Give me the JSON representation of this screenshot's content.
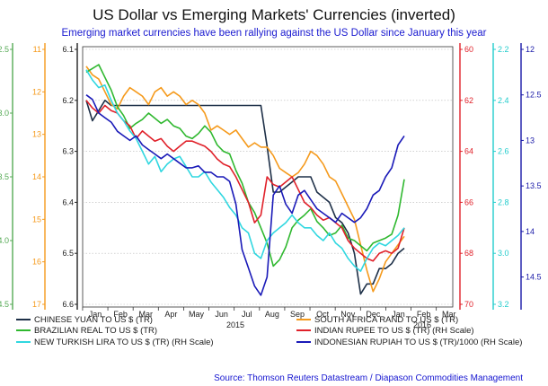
{
  "chart_data": {
    "type": "line",
    "title": "US Dollar vs Emerging Markets' Currencies (inverted)",
    "subtitle": "Emerging market currencies have been rallying against the US Dollar since January this year",
    "source": "Source: Thomson Reuters Datastream / Diapason Commodities Management",
    "x_ticks": [
      "Jan",
      "Feb",
      "Mar",
      "Apr",
      "May",
      "Jun",
      "Jul",
      "Aug",
      "Sep",
      "Oct",
      "Nov",
      "Dec",
      "Jan",
      "Feb",
      "Mar"
    ],
    "year_labels": [
      "2015",
      "2016"
    ],
    "axes": [
      {
        "id": "ax1",
        "side": "left",
        "color": "#55aa55",
        "ticks": [
          "2.5",
          "3.0",
          "3.5",
          "4.0",
          "4.5"
        ],
        "min": 2.5,
        "max": 4.5,
        "inverted": true
      },
      {
        "id": "ax2",
        "side": "left",
        "color": "#f59a1c",
        "ticks": [
          "11",
          "12",
          "13",
          "14",
          "15",
          "16",
          "17"
        ],
        "min": 11,
        "max": 17,
        "inverted": true
      },
      {
        "id": "ax3",
        "side": "left",
        "color": "#222222",
        "ticks": [
          "6.1",
          "6.2",
          "6.3",
          "6.4",
          "6.5",
          "6.6"
        ],
        "min": 6.1,
        "max": 6.6,
        "inverted": true
      },
      {
        "id": "ax4",
        "side": "right",
        "color": "#e0212a",
        "ticks": [
          "60",
          "62",
          "64",
          "66",
          "68",
          "70"
        ],
        "min": 60,
        "max": 70,
        "inverted": true
      },
      {
        "id": "ax5",
        "side": "right",
        "color": "#22cccc",
        "ticks": [
          "2.2",
          "2.4",
          "2.6",
          "2.8",
          "3.0",
          "3.2"
        ],
        "min": 2.2,
        "max": 3.2,
        "inverted": true
      },
      {
        "id": "ax6",
        "side": "right",
        "color": "#1a1aa8",
        "ticks": [
          "12",
          "12.5",
          "13",
          "13.5",
          "14",
          "14.5"
        ],
        "min": 12,
        "max": 14.8,
        "inverted": true
      }
    ],
    "series": [
      {
        "name": "CHINESE YUAN TO US $ (TR)",
        "axis": "ax3",
        "color": "#1e3048",
        "values": [
          6.2,
          6.24,
          6.22,
          6.2,
          6.21,
          6.21,
          6.21,
          6.21,
          6.21,
          6.21,
          6.21,
          6.21,
          6.21,
          6.21,
          6.21,
          6.21,
          6.21,
          6.21,
          6.21,
          6.21,
          6.21,
          6.21,
          6.21,
          6.21,
          6.21,
          6.21,
          6.21,
          6.21,
          6.21,
          6.29,
          6.38,
          6.38,
          6.37,
          6.36,
          6.35,
          6.35,
          6.35,
          6.38,
          6.39,
          6.4,
          6.43,
          6.44,
          6.46,
          6.5,
          6.58,
          6.56,
          6.56,
          6.53,
          6.53,
          6.52,
          6.5,
          6.49
        ]
      },
      {
        "name": "SOUTH AFRICA RAND TO US $ (TR)",
        "axis": "ax2",
        "color": "#f59a1c",
        "values": [
          11.4,
          11.6,
          11.7,
          12.0,
          12.3,
          12.4,
          12.1,
          11.9,
          12.0,
          12.1,
          12.3,
          12.0,
          11.9,
          12.1,
          12.0,
          12.1,
          12.3,
          12.2,
          12.3,
          12.5,
          12.9,
          12.8,
          12.9,
          13.0,
          12.9,
          13.1,
          13.3,
          13.2,
          13.3,
          13.3,
          13.5,
          13.8,
          13.9,
          14.0,
          13.9,
          13.7,
          13.4,
          13.5,
          13.7,
          14.0,
          14.1,
          14.4,
          14.7,
          15.0,
          15.6,
          16.2,
          16.7,
          16.4,
          16.0,
          15.8,
          15.6,
          15.4
        ]
      },
      {
        "name": "BRAZILIAN REAL TO US $ (TR)",
        "axis": "ax1",
        "color": "#2fb82f",
        "values": [
          2.68,
          2.65,
          2.62,
          2.72,
          2.82,
          2.95,
          3.02,
          3.12,
          3.08,
          3.05,
          3.0,
          3.04,
          3.08,
          3.05,
          3.1,
          3.12,
          3.18,
          3.2,
          3.16,
          3.1,
          3.15,
          3.25,
          3.3,
          3.32,
          3.45,
          3.55,
          3.7,
          3.78,
          3.9,
          4.02,
          4.2,
          4.15,
          4.05,
          3.9,
          3.84,
          3.8,
          3.75,
          3.85,
          3.9,
          3.96,
          3.94,
          3.88,
          3.98,
          4.0,
          4.04,
          4.08,
          4.02,
          4.0,
          3.98,
          3.95,
          3.8,
          3.52
        ]
      },
      {
        "name": "INDIAN RUPEE TO US $ (TR) (RH Scale)",
        "axis": "ax4",
        "color": "#e0212a",
        "values": [
          62.0,
          62.3,
          62.5,
          62.2,
          62.4,
          62.5,
          62.8,
          63.0,
          63.5,
          63.2,
          63.4,
          63.6,
          63.5,
          63.8,
          64.0,
          63.8,
          63.6,
          63.6,
          63.7,
          63.8,
          64.0,
          64.3,
          64.5,
          64.6,
          65.0,
          65.5,
          66.0,
          66.8,
          66.5,
          65.0,
          65.3,
          65.4,
          65.2,
          65.0,
          65.5,
          66.0,
          66.2,
          66.5,
          66.7,
          66.6,
          66.8,
          67.0,
          67.5,
          67.8,
          68.0,
          68.2,
          68.3,
          68.0,
          67.9,
          68.0,
          67.8,
          67.0
        ]
      },
      {
        "name": "NEW TURKISH LIRA TO US $ (TR) (RH Scale)",
        "axis": "ax5",
        "color": "#30d7e0",
        "values": [
          2.28,
          2.32,
          2.35,
          2.34,
          2.4,
          2.45,
          2.48,
          2.52,
          2.55,
          2.6,
          2.65,
          2.62,
          2.68,
          2.65,
          2.63,
          2.62,
          2.66,
          2.7,
          2.7,
          2.68,
          2.72,
          2.75,
          2.78,
          2.82,
          2.85,
          2.9,
          2.92,
          3.0,
          3.02,
          2.95,
          2.92,
          2.9,
          2.88,
          2.85,
          2.88,
          2.9,
          2.9,
          2.93,
          2.95,
          2.92,
          2.96,
          2.98,
          3.02,
          3.05,
          3.07,
          3.02,
          2.98,
          2.96,
          2.97,
          2.95,
          2.93,
          2.9
        ]
      },
      {
        "name": "INDONESIAN RUPIAH TO US $ (TR)/1000 (RH Scale)",
        "axis": "ax6",
        "color": "#1a1ab8",
        "values": [
          12.5,
          12.55,
          12.7,
          12.75,
          12.8,
          12.9,
          12.95,
          13.0,
          12.95,
          13.05,
          13.1,
          13.15,
          13.2,
          13.15,
          13.2,
          13.25,
          13.3,
          13.3,
          13.28,
          13.35,
          13.35,
          13.4,
          13.4,
          13.45,
          13.7,
          14.2,
          14.4,
          14.6,
          14.7,
          14.5,
          13.6,
          13.5,
          13.7,
          13.8,
          13.6,
          13.55,
          13.65,
          13.75,
          13.8,
          13.85,
          13.9,
          13.8,
          13.85,
          13.9,
          13.85,
          13.75,
          13.6,
          13.55,
          13.4,
          13.3,
          13.05,
          12.95
        ]
      }
    ],
    "legend_position": "bottom"
  }
}
